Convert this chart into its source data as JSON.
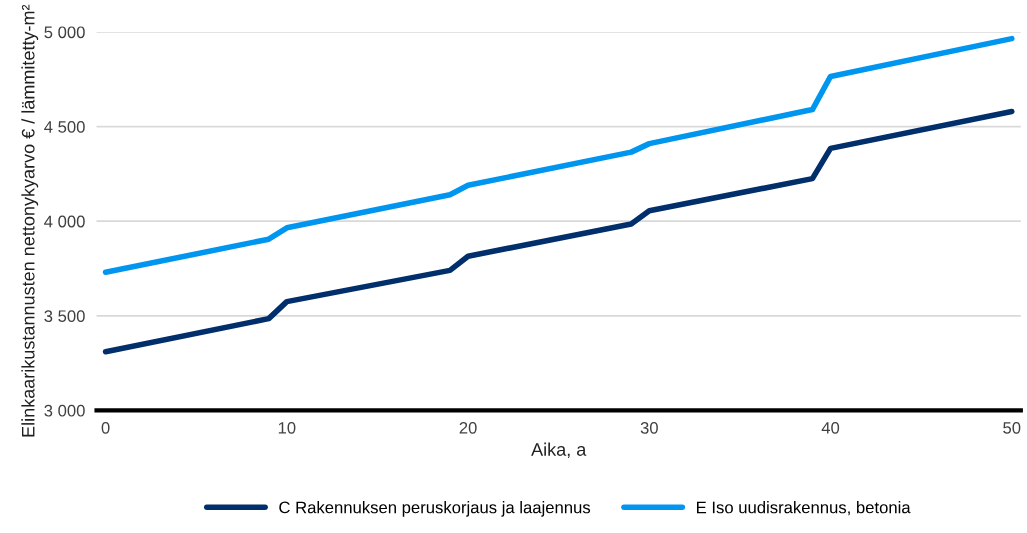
{
  "chart_data": {
    "type": "line",
    "xlabel": "Aika, a",
    "ylabel": "Elinkaarikustannusten nettonykyarvo € / lämmitetty-m²",
    "xlim": [
      -0.5,
      50.5
    ],
    "xticks": [
      0,
      10,
      20,
      30,
      40,
      50
    ],
    "ylim": [
      3000,
      5000
    ],
    "yticks": [
      {
        "value": 3000,
        "label": "3 000"
      },
      {
        "value": 3500,
        "label": "3 500"
      },
      {
        "value": 4000,
        "label": "4 000"
      },
      {
        "value": 4500,
        "label": "4 500"
      },
      {
        "value": 5000,
        "label": "5 000"
      }
    ],
    "grid": "y",
    "legend": "bottom",
    "marker": "none",
    "line_style": "solid",
    "series": [
      {
        "name": "C Rakennuksen peruskorjaus ja laajennus",
        "color": "#002f6c",
        "x": [
          0,
          9,
          10,
          19,
          20,
          29,
          30,
          39,
          40,
          50
        ],
        "values": [
          3310,
          3485,
          3575,
          3740,
          3815,
          3985,
          4055,
          4225,
          4385,
          4580
        ]
      },
      {
        "name": "E Iso uudisrakennus, betonia",
        "color": "#0096f0",
        "x": [
          0,
          9,
          10,
          19,
          20,
          29,
          30,
          39,
          40,
          50
        ],
        "values": [
          3730,
          3905,
          3965,
          4140,
          4190,
          4365,
          4410,
          4590,
          4765,
          4965
        ]
      }
    ]
  }
}
